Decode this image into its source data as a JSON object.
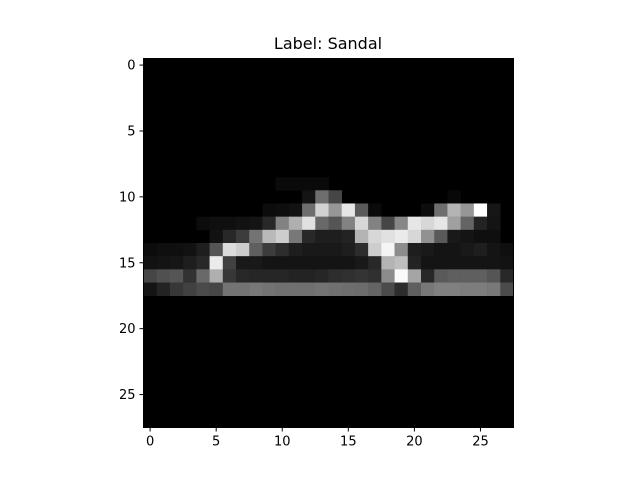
{
  "figure": {
    "title": "Label: Sandal",
    "background": "#ffffff"
  },
  "chart_data": {
    "type": "heatmap",
    "colormap": "gray",
    "rows": 28,
    "cols": 28,
    "vmin": 0,
    "vmax": 255,
    "xlim": [
      -0.5,
      27.5
    ],
    "ylim": [
      27.5,
      -0.5
    ],
    "x_ticks": [
      0,
      5,
      10,
      15,
      20,
      25
    ],
    "x_tick_labels": [
      "0",
      "5",
      "10",
      "15",
      "20",
      "25"
    ],
    "y_ticks": [
      0,
      5,
      10,
      15,
      20,
      25
    ],
    "y_tick_labels": [
      "0",
      "5",
      "10",
      "15",
      "20",
      "25"
    ],
    "nonzero_pixels": [
      [
        9,
        10,
        10
      ],
      [
        9,
        11,
        10
      ],
      [
        9,
        12,
        10
      ],
      [
        9,
        13,
        10
      ],
      [
        10,
        12,
        20
      ],
      [
        10,
        13,
        110
      ],
      [
        10,
        14,
        70
      ],
      [
        10,
        23,
        8
      ],
      [
        11,
        9,
        12
      ],
      [
        11,
        10,
        14
      ],
      [
        11,
        11,
        18
      ],
      [
        11,
        12,
        110
      ],
      [
        11,
        13,
        210
      ],
      [
        11,
        14,
        150
      ],
      [
        11,
        15,
        230
      ],
      [
        11,
        16,
        90
      ],
      [
        11,
        17,
        10
      ],
      [
        11,
        21,
        12
      ],
      [
        11,
        22,
        110
      ],
      [
        11,
        23,
        180
      ],
      [
        11,
        24,
        150
      ],
      [
        11,
        25,
        255
      ],
      [
        11,
        26,
        22
      ],
      [
        12,
        4,
        12
      ],
      [
        12,
        5,
        15
      ],
      [
        12,
        6,
        15
      ],
      [
        12,
        7,
        18
      ],
      [
        12,
        8,
        20
      ],
      [
        12,
        9,
        40
      ],
      [
        12,
        10,
        130
      ],
      [
        12,
        11,
        175
      ],
      [
        12,
        12,
        225
      ],
      [
        12,
        13,
        105
      ],
      [
        12,
        14,
        85
      ],
      [
        12,
        15,
        130
      ],
      [
        12,
        16,
        215
      ],
      [
        12,
        17,
        130
      ],
      [
        12,
        18,
        70
      ],
      [
        12,
        19,
        135
      ],
      [
        12,
        20,
        230
      ],
      [
        12,
        21,
        215
      ],
      [
        12,
        22,
        230
      ],
      [
        12,
        23,
        160
      ],
      [
        12,
        24,
        100
      ],
      [
        12,
        25,
        35
      ],
      [
        12,
        26,
        20
      ],
      [
        13,
        5,
        18
      ],
      [
        13,
        6,
        40
      ],
      [
        13,
        7,
        60
      ],
      [
        13,
        8,
        115
      ],
      [
        13,
        9,
        185
      ],
      [
        13,
        10,
        205
      ],
      [
        13,
        11,
        120
      ],
      [
        13,
        12,
        40
      ],
      [
        13,
        13,
        30
      ],
      [
        13,
        14,
        30
      ],
      [
        13,
        15,
        35
      ],
      [
        13,
        16,
        180
      ],
      [
        13,
        17,
        215
      ],
      [
        13,
        18,
        225
      ],
      [
        13,
        19,
        235
      ],
      [
        13,
        20,
        215
      ],
      [
        13,
        21,
        145
      ],
      [
        13,
        22,
        90
      ],
      [
        13,
        23,
        25
      ],
      [
        13,
        24,
        20
      ],
      [
        13,
        25,
        15
      ],
      [
        13,
        26,
        15
      ],
      [
        14,
        0,
        12
      ],
      [
        14,
        1,
        15
      ],
      [
        14,
        2,
        15
      ],
      [
        14,
        3,
        18
      ],
      [
        14,
        4,
        30
      ],
      [
        14,
        5,
        85
      ],
      [
        14,
        6,
        220
      ],
      [
        14,
        7,
        205
      ],
      [
        14,
        8,
        95
      ],
      [
        14,
        9,
        60
      ],
      [
        14,
        10,
        45
      ],
      [
        14,
        11,
        30
      ],
      [
        14,
        12,
        25
      ],
      [
        14,
        13,
        25
      ],
      [
        14,
        14,
        25
      ],
      [
        14,
        15,
        30
      ],
      [
        14,
        16,
        45
      ],
      [
        14,
        17,
        205
      ],
      [
        14,
        18,
        245
      ],
      [
        14,
        19,
        140
      ],
      [
        14,
        20,
        30
      ],
      [
        14,
        21,
        25
      ],
      [
        14,
        22,
        20
      ],
      [
        14,
        23,
        20
      ],
      [
        14,
        24,
        25
      ],
      [
        14,
        25,
        30
      ],
      [
        14,
        26,
        20
      ],
      [
        14,
        27,
        15
      ],
      [
        15,
        0,
        18
      ],
      [
        15,
        1,
        20
      ],
      [
        15,
        2,
        22
      ],
      [
        15,
        3,
        30
      ],
      [
        15,
        4,
        40
      ],
      [
        15,
        5,
        235
      ],
      [
        15,
        6,
        65
      ],
      [
        15,
        7,
        25
      ],
      [
        15,
        8,
        25
      ],
      [
        15,
        9,
        20
      ],
      [
        15,
        10,
        20
      ],
      [
        15,
        11,
        20
      ],
      [
        15,
        12,
        20
      ],
      [
        15,
        13,
        20
      ],
      [
        15,
        14,
        20
      ],
      [
        15,
        15,
        20
      ],
      [
        15,
        16,
        25
      ],
      [
        15,
        17,
        40
      ],
      [
        15,
        18,
        180
      ],
      [
        15,
        19,
        190
      ],
      [
        15,
        20,
        35
      ],
      [
        15,
        21,
        20
      ],
      [
        15,
        22,
        20
      ],
      [
        15,
        23,
        20
      ],
      [
        15,
        24,
        20
      ],
      [
        15,
        25,
        20
      ],
      [
        15,
        26,
        20
      ],
      [
        15,
        27,
        18
      ],
      [
        16,
        0,
        70
      ],
      [
        16,
        1,
        80
      ],
      [
        16,
        2,
        85
      ],
      [
        16,
        3,
        50
      ],
      [
        16,
        4,
        105
      ],
      [
        16,
        5,
        175
      ],
      [
        16,
        6,
        55
      ],
      [
        16,
        7,
        40
      ],
      [
        16,
        8,
        38
      ],
      [
        16,
        9,
        38
      ],
      [
        16,
        10,
        38
      ],
      [
        16,
        11,
        35
      ],
      [
        16,
        12,
        35
      ],
      [
        16,
        13,
        38
      ],
      [
        16,
        14,
        45
      ],
      [
        16,
        15,
        48
      ],
      [
        16,
        16,
        52
      ],
      [
        16,
        17,
        48
      ],
      [
        16,
        18,
        140
      ],
      [
        16,
        19,
        250
      ],
      [
        16,
        20,
        165
      ],
      [
        16,
        21,
        40
      ],
      [
        16,
        22,
        90
      ],
      [
        16,
        23,
        95
      ],
      [
        16,
        24,
        95
      ],
      [
        16,
        25,
        95
      ],
      [
        16,
        26,
        85
      ],
      [
        16,
        27,
        40
      ],
      [
        17,
        0,
        20
      ],
      [
        17,
        1,
        35
      ],
      [
        17,
        2,
        55
      ],
      [
        17,
        3,
        65
      ],
      [
        17,
        4,
        75
      ],
      [
        17,
        5,
        70
      ],
      [
        17,
        6,
        115
      ],
      [
        17,
        7,
        115
      ],
      [
        17,
        8,
        120
      ],
      [
        17,
        9,
        115
      ],
      [
        17,
        10,
        112
      ],
      [
        17,
        11,
        112
      ],
      [
        17,
        12,
        112
      ],
      [
        17,
        13,
        115
      ],
      [
        17,
        14,
        112
      ],
      [
        17,
        15,
        110
      ],
      [
        17,
        16,
        108
      ],
      [
        17,
        17,
        100
      ],
      [
        17,
        18,
        75
      ],
      [
        17,
        19,
        45
      ],
      [
        17,
        20,
        95
      ],
      [
        17,
        21,
        120
      ],
      [
        17,
        22,
        128
      ],
      [
        17,
        23,
        128
      ],
      [
        17,
        24,
        125
      ],
      [
        17,
        25,
        125
      ],
      [
        17,
        26,
        120
      ],
      [
        17,
        27,
        75
      ]
    ]
  }
}
